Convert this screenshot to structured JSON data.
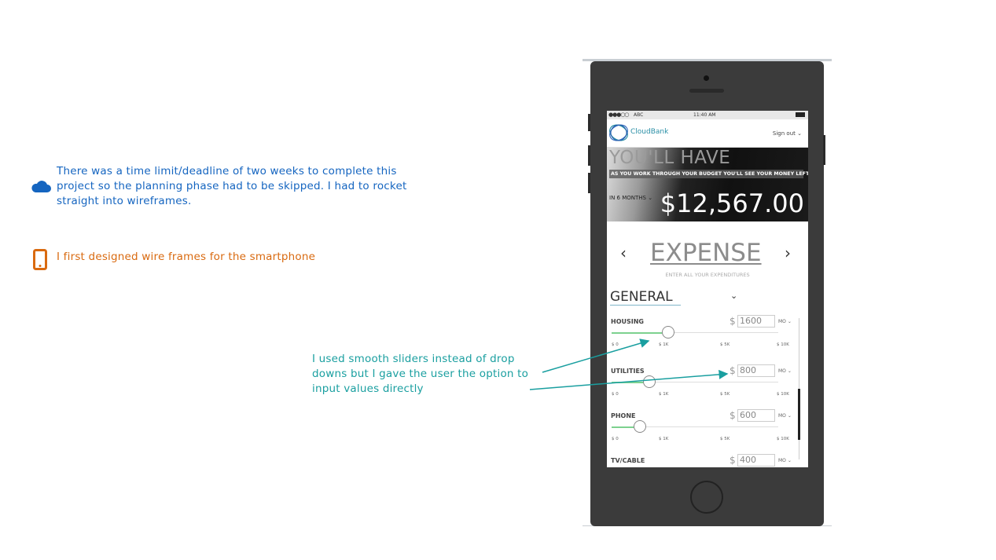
{
  "notes": [
    {
      "icon": "cloud-icon",
      "text": "There was a time limit/deadline of two weeks to complete this project so the planning phase had to be skipped. I had to rocket straight into wireframes.",
      "color": "#1565c0"
    },
    {
      "icon": "smartphone-icon",
      "text": "I first designed wire frames for the smartphone",
      "color": "#d96a10"
    },
    {
      "text": "I used smooth sliders instead of drop downs but I gave the user the option to input values directly",
      "color": "#1a9fa0"
    }
  ],
  "phone": {
    "status": {
      "carrier": "ABC",
      "time": "11:40 AM"
    },
    "header": {
      "brand": "CloudBank",
      "signout": "Sign out"
    },
    "hero": {
      "title": "YOU'LL HAVE",
      "subtitle": "AS YOU WORK THROUGH YOUR BUDGET YOU'LL SEE YOUR MONEY LEFT OVER",
      "period": "IN 6 MONTHS",
      "amount": "$12,567.00"
    },
    "section": {
      "title": "EXPENSE",
      "subtitle": "ENTER ALL YOUR EXPENDITURES",
      "prev": "‹",
      "next": "›"
    },
    "category": "GENERAL",
    "ticks": [
      "$ 0",
      "$ 1K",
      "$ 5K",
      "$ 10K"
    ],
    "expenses": [
      {
        "label": "HOUSING",
        "currency": "$",
        "value": "1600",
        "period": "MO"
      },
      {
        "label": "UTILITIES",
        "currency": "$",
        "value": "800",
        "period": "MO"
      },
      {
        "label": "PHONE",
        "currency": "$",
        "value": "600",
        "period": "MO"
      },
      {
        "label": "TV/CABLE",
        "currency": "$",
        "value": "400",
        "period": "MO"
      }
    ]
  }
}
